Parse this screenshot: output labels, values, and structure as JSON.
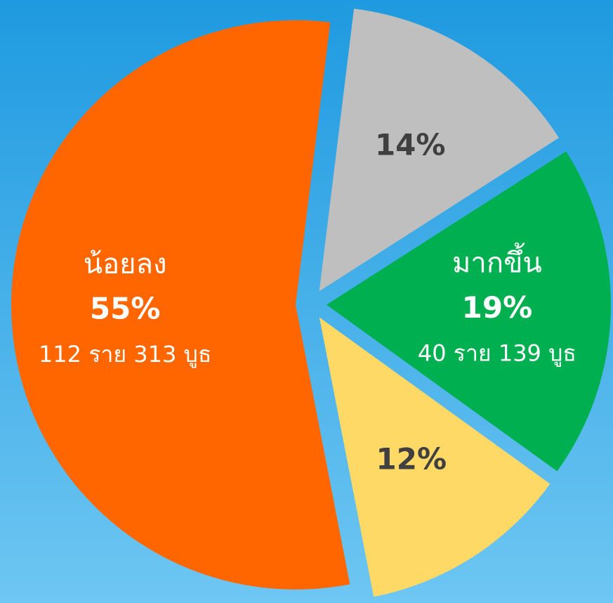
{
  "chart_data": {
    "type": "pie",
    "categories": [
      "น้อยลง",
      null,
      "มากขึ้น",
      null
    ],
    "values": [
      55,
      14,
      19,
      12
    ],
    "value_labels": [
      "55%",
      "14%",
      "19%",
      "12%"
    ],
    "sublabels": [
      "112 ราย 313 บูธ",
      null,
      "40 ราย 139 บูธ",
      null
    ],
    "colors": [
      "#ff6600",
      "#bfbfbf",
      "#00b050",
      "#ffd966"
    ],
    "label_colors": [
      "#ffffff",
      "#404040",
      "#ffffff",
      "#404040"
    ],
    "start_slice": 1
  }
}
